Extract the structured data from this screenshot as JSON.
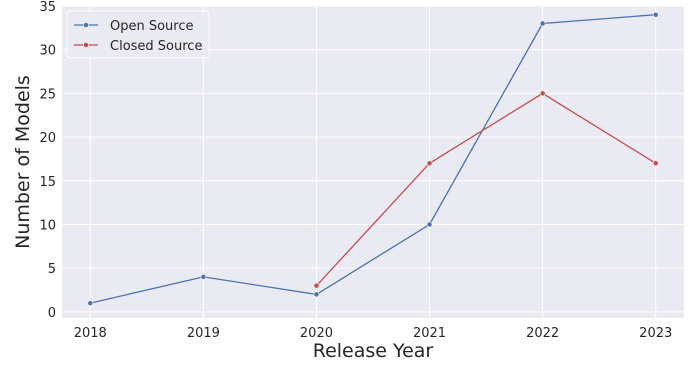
{
  "chart_data": {
    "type": "line",
    "xlabel": "Release Year",
    "ylabel": "Number of Models",
    "x": [
      2018,
      2019,
      2020,
      2021,
      2022,
      2023
    ],
    "xlim": [
      2017.75,
      2023.25
    ],
    "ylim": [
      -0.7,
      35
    ],
    "yticks": [
      0,
      5,
      10,
      15,
      20,
      25,
      30,
      35
    ],
    "grid": true,
    "legend_position": "top-left",
    "series": [
      {
        "name": "Open Source",
        "color": "#4c72b0",
        "x": [
          2018,
          2019,
          2020,
          2021,
          2022,
          2023
        ],
        "values": [
          1,
          4,
          2,
          10,
          33,
          34
        ]
      },
      {
        "name": "Closed Source",
        "color": "#c44e52",
        "x": [
          2020,
          2021,
          2022,
          2023
        ],
        "values": [
          3,
          17,
          25,
          17
        ]
      }
    ]
  }
}
